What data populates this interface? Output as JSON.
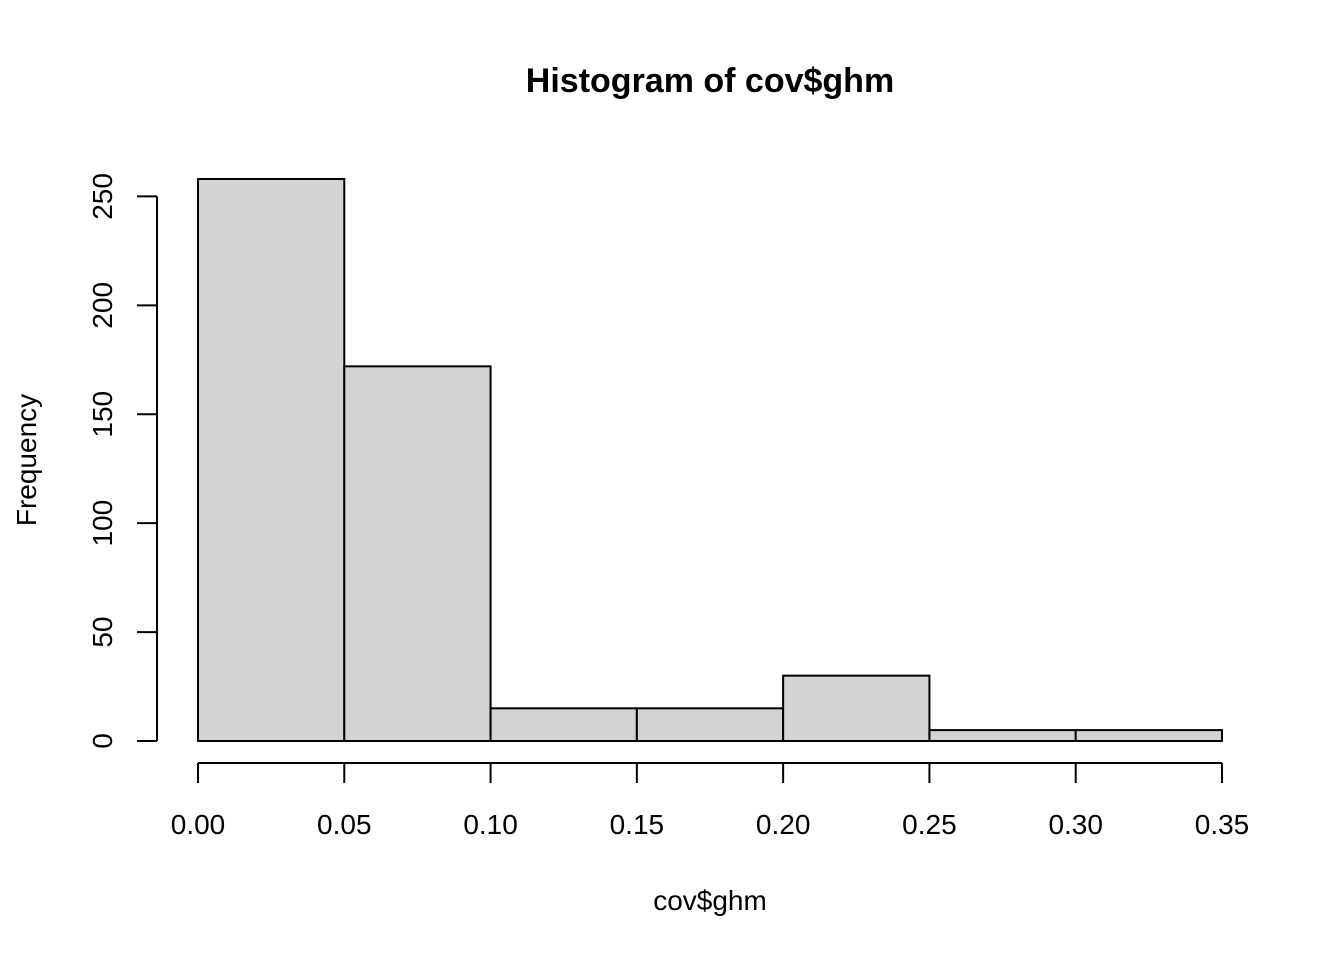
{
  "chart_data": {
    "type": "bar",
    "title": "Histogram of cov$ghm",
    "xlabel": "cov$ghm",
    "ylabel": "Frequency",
    "bins": [
      {
        "start": 0.0,
        "end": 0.05,
        "count": 258
      },
      {
        "start": 0.05,
        "end": 0.1,
        "count": 172
      },
      {
        "start": 0.1,
        "end": 0.15,
        "count": 15
      },
      {
        "start": 0.15,
        "end": 0.2,
        "count": 15
      },
      {
        "start": 0.2,
        "end": 0.25,
        "count": 30
      },
      {
        "start": 0.25,
        "end": 0.3,
        "count": 5
      },
      {
        "start": 0.3,
        "end": 0.35,
        "count": 5
      }
    ],
    "xlim": [
      0.0,
      0.35
    ],
    "ylim": [
      0,
      258
    ],
    "x_ticks": [
      "0.00",
      "0.05",
      "0.10",
      "0.15",
      "0.20",
      "0.25",
      "0.30",
      "0.35"
    ],
    "y_ticks": [
      "0",
      "50",
      "100",
      "150",
      "200",
      "250"
    ],
    "bar_fill": "#d3d3d3",
    "bar_stroke": "#000000",
    "grid": false,
    "legend": "none"
  }
}
